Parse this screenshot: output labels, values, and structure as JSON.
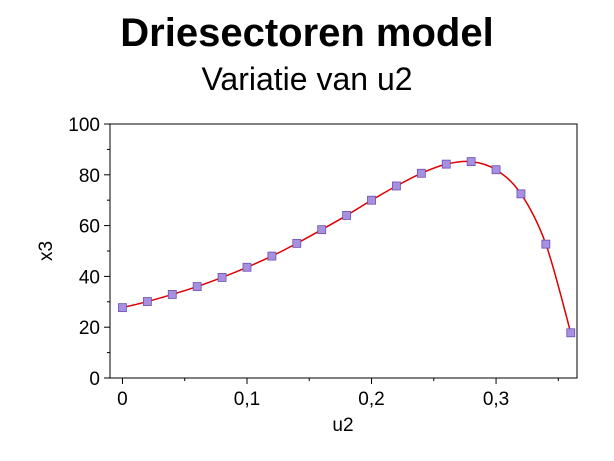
{
  "chart_data": {
    "type": "line",
    "title": "Driesectoren model",
    "subtitle": "Variatie van u2",
    "xlabel": "u2",
    "ylabel": "x3",
    "xlim": [
      -0.01,
      0.365
    ],
    "ylim": [
      0,
      100
    ],
    "x_ticks": [
      0,
      0.1,
      0.2,
      0.3
    ],
    "x_tick_labels": [
      "0",
      "0,1",
      "0,2",
      "0,3"
    ],
    "y_ticks": [
      0,
      20,
      40,
      60,
      80,
      100
    ],
    "y_tick_labels": [
      "0",
      "20",
      "40",
      "60",
      "80",
      "100"
    ],
    "grid": false,
    "legend": "none",
    "line_color": "#dd0000",
    "marker_color": "#a890e0",
    "series": [
      {
        "x": [
          0,
          0.02,
          0.04,
          0.06,
          0.08,
          0.1,
          0.12,
          0.14,
          0.16,
          0.18,
          0.2,
          0.22,
          0.24,
          0.26,
          0.28,
          0.3,
          0.32,
          0.34,
          0.36
        ],
        "values": [
          27.7,
          30.1,
          32.9,
          36.0,
          39.6,
          43.6,
          48.0,
          53.0,
          58.4,
          64.0,
          70.0,
          75.6,
          80.6,
          84.2,
          85.2,
          82.0,
          72.5,
          52.7,
          17.8
        ]
      }
    ]
  }
}
